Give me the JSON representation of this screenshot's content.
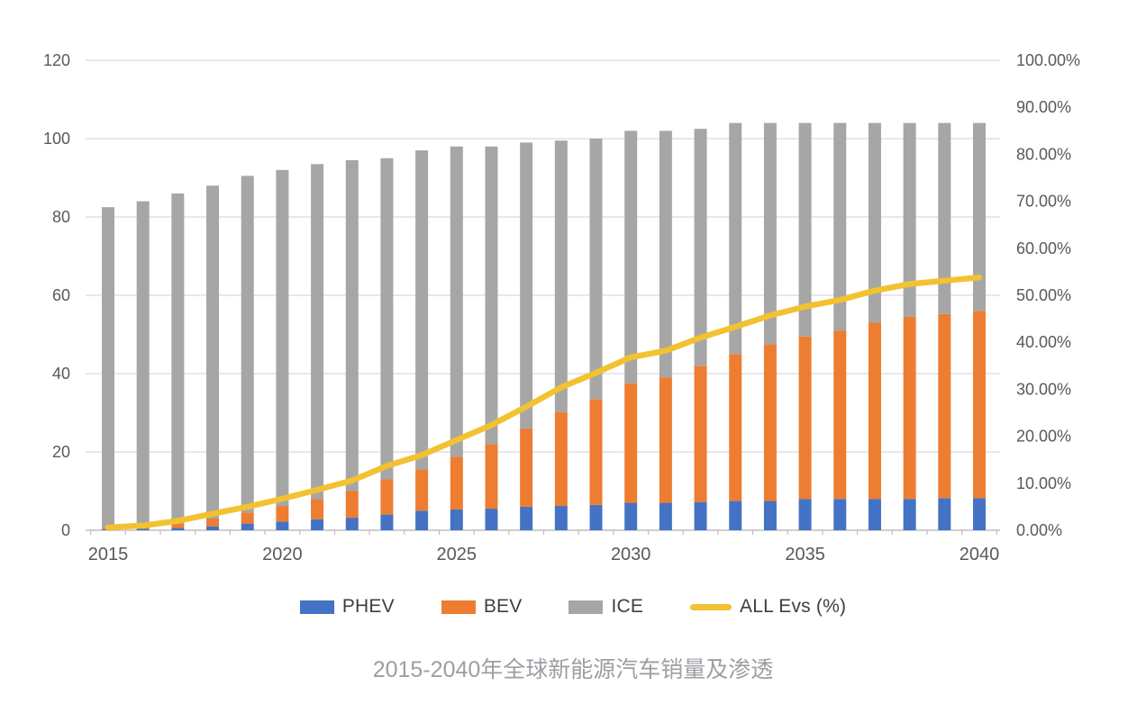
{
  "page": {
    "title": "2015-2040年全球新能源汽车销量及渗透"
  },
  "chart_data": {
    "type": "bar",
    "subtype": "stacked-bars-with-line",
    "title": "2015-2040年全球新能源汽车销量及渗透",
    "categories": [
      2015,
      2016,
      2017,
      2018,
      2019,
      2020,
      2021,
      2022,
      2023,
      2024,
      2025,
      2026,
      2027,
      2028,
      2029,
      2030,
      2031,
      2032,
      2033,
      2034,
      2035,
      2036,
      2037,
      2038,
      2039,
      2040
    ],
    "series": [
      {
        "name": "PHEV",
        "type": "bar",
        "axis": "left",
        "color": "#4472C4",
        "values": [
          0.2,
          0.4,
          0.6,
          1.0,
          1.7,
          2.2,
          2.8,
          3.2,
          4.0,
          5.0,
          5.3,
          5.5,
          6.0,
          6.2,
          6.5,
          7.0,
          7.0,
          7.2,
          7.5,
          7.5,
          8.0,
          8.0,
          8.0,
          8.0,
          8.2,
          8.2
        ]
      },
      {
        "name": "BEV",
        "type": "bar",
        "axis": "left",
        "color": "#ED7D31",
        "values": [
          0.3,
          0.6,
          1.2,
          2.0,
          2.8,
          4.0,
          5.2,
          6.8,
          9.0,
          10.5,
          13.5,
          16.5,
          20.0,
          24.0,
          27.0,
          30.5,
          32.0,
          34.8,
          37.5,
          40.0,
          41.5,
          43.0,
          45.0,
          46.5,
          47.0,
          47.8
        ]
      },
      {
        "name": "ICE",
        "type": "bar",
        "axis": "left",
        "color": "#A6A6A6",
        "values": [
          82.0,
          83.0,
          84.2,
          85.0,
          86.0,
          85.8,
          85.5,
          84.5,
          82.0,
          81.5,
          79.2,
          76.0,
          73.0,
          69.3,
          66.5,
          64.5,
          63.0,
          60.5,
          59.0,
          56.5,
          54.5,
          53.0,
          51.0,
          49.5,
          48.8,
          48.0
        ]
      },
      {
        "name": "ALL Evs (%)",
        "type": "line",
        "axis": "right",
        "color": "#F2C230",
        "values": [
          0.6,
          1.0,
          2.0,
          3.5,
          5.0,
          6.7,
          8.6,
          10.6,
          13.7,
          16.0,
          19.2,
          22.4,
          26.3,
          30.4,
          33.5,
          36.8,
          38.2,
          41.0,
          43.3,
          45.7,
          47.6,
          49.0,
          51.0,
          52.4,
          53.1,
          53.8
        ]
      }
    ],
    "left_axis": {
      "min": 0,
      "max": 120,
      "step": 20,
      "tick_labels": [
        "0",
        "20",
        "40",
        "60",
        "80",
        "100",
        "120"
      ]
    },
    "right_axis": {
      "min": 0,
      "max": 100,
      "step": 10,
      "tick_labels": [
        "0.00%",
        "10.00%",
        "20.00%",
        "30.00%",
        "40.00%",
        "50.00%",
        "60.00%",
        "70.00%",
        "80.00%",
        "90.00%",
        "100.00%"
      ]
    },
    "x_axis": {
      "label_years": [
        "2015",
        "2020",
        "2025",
        "2030",
        "2035",
        "2040"
      ]
    },
    "grid": true,
    "legend_position": "bottom",
    "colors": {
      "gridline": "#D9D9D9",
      "axis_line": "#BFBFBF",
      "tick_label": "#595959",
      "legend_text": "#3f3f3f",
      "title_text": "#9b9fa3"
    }
  }
}
